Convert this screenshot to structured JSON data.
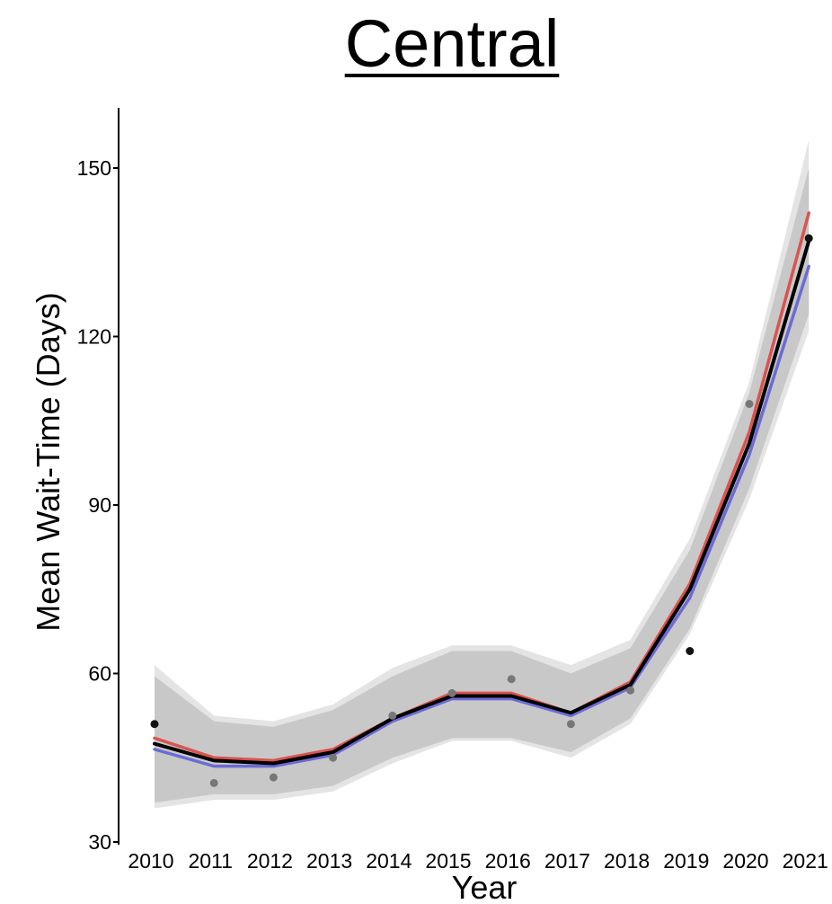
{
  "chart_data": {
    "type": "line",
    "title": "Central",
    "xlabel": "Year",
    "ylabel": "Mean Wait-Time (Days)",
    "x": [
      "2010",
      "2011",
      "2012",
      "2013",
      "2014",
      "2015",
      "2016",
      "2017",
      "2018",
      "2019",
      "2020",
      "2021"
    ],
    "ylim": [
      30,
      160
    ],
    "yticks": [
      30,
      60,
      90,
      120,
      150
    ],
    "grid": false,
    "series": [
      {
        "key": "red",
        "color": "#d9534f",
        "values": [
          48.5,
          45.0,
          44.5,
          46.5,
          52.0,
          56.5,
          56.5,
          53.0,
          58.5,
          76.0,
          103.0,
          142.0
        ]
      },
      {
        "key": "blue",
        "color": "#6b6bd6",
        "values": [
          46.5,
          43.5,
          43.5,
          45.5,
          51.5,
          55.5,
          55.5,
          52.5,
          57.5,
          73.5,
          99.0,
          132.5
        ]
      },
      {
        "key": "black",
        "color": "#000000",
        "values": [
          47.5,
          44.5,
          44.0,
          46.0,
          52.0,
          56.0,
          56.0,
          53.0,
          58.0,
          75.0,
          101.0,
          137.0
        ]
      }
    ],
    "bands": [
      {
        "key": "outer",
        "color": "#e4e4e4",
        "lower": [
          36.0,
          37.5,
          37.5,
          39.0,
          44.0,
          48.0,
          48.0,
          45.0,
          51.0,
          67.0,
          91.0,
          121.0
        ],
        "upper": [
          61.5,
          52.5,
          51.5,
          54.5,
          61.0,
          65.0,
          65.0,
          61.5,
          66.0,
          84.0,
          112.0,
          155.0
        ]
      },
      {
        "key": "inner",
        "color": "#c8c8c8",
        "lower": [
          37.0,
          38.5,
          38.5,
          40.0,
          45.0,
          48.5,
          48.5,
          46.0,
          52.0,
          68.0,
          93.0,
          124.0
        ],
        "upper": [
          59.5,
          51.5,
          50.5,
          53.5,
          59.5,
          64.0,
          64.0,
          60.0,
          64.5,
          82.0,
          110.0,
          150.0
        ]
      }
    ],
    "points": [
      {
        "x": "2010",
        "y": 51.0,
        "color": "#111111"
      },
      {
        "x": "2011",
        "y": 40.5,
        "color": "#777777"
      },
      {
        "x": "2012",
        "y": 41.5,
        "color": "#777777"
      },
      {
        "x": "2013",
        "y": 45.0,
        "color": "#777777"
      },
      {
        "x": "2014",
        "y": 52.5,
        "color": "#777777"
      },
      {
        "x": "2015",
        "y": 56.5,
        "color": "#777777"
      },
      {
        "x": "2016",
        "y": 59.0,
        "color": "#777777"
      },
      {
        "x": "2017",
        "y": 51.0,
        "color": "#777777"
      },
      {
        "x": "2018",
        "y": 57.0,
        "color": "#777777"
      },
      {
        "x": "2019",
        "y": 64.0,
        "color": "#111111"
      },
      {
        "x": "2020",
        "y": 108.0,
        "color": "#777777"
      },
      {
        "x": "2021",
        "y": 137.5,
        "color": "#111111"
      }
    ]
  }
}
